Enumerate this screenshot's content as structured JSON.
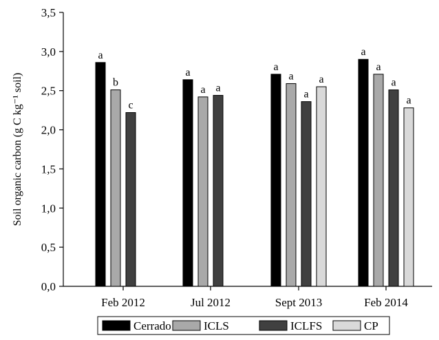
{
  "chart_data": {
    "type": "bar",
    "ylabel": "Soil organic carbon (g C kg⁻¹ soil)",
    "xlabel": "",
    "ylim": [
      0,
      3.5
    ],
    "yticks": [
      "0,0",
      "0,5",
      "1,0",
      "1,5",
      "2,0",
      "2,5",
      "3,0",
      "3,5"
    ],
    "categories": [
      "Feb 2012",
      "Jul 2012",
      "Sept 2013",
      "Feb 2014"
    ],
    "series": [
      {
        "name": "Cerrado",
        "color": "#000000",
        "values": [
          2.86,
          2.64,
          2.71,
          2.9
        ],
        "letters": [
          "a",
          "a",
          "a",
          "a"
        ]
      },
      {
        "name": "ICLS",
        "color": "#a9a9a9",
        "values": [
          2.51,
          2.42,
          2.59,
          2.71
        ],
        "letters": [
          "b",
          "a",
          "a",
          "a"
        ]
      },
      {
        "name": "ICLFS",
        "color": "#404040",
        "values": [
          2.22,
          2.44,
          2.36,
          2.51
        ],
        "letters": [
          "c",
          "a",
          "a",
          "a"
        ]
      },
      {
        "name": "CP",
        "color": "#d9d9d9",
        "values": [
          null,
          null,
          2.55,
          2.28
        ],
        "letters": [
          null,
          null,
          "a",
          "a"
        ]
      }
    ],
    "legend_position": "bottom",
    "grid": false
  }
}
